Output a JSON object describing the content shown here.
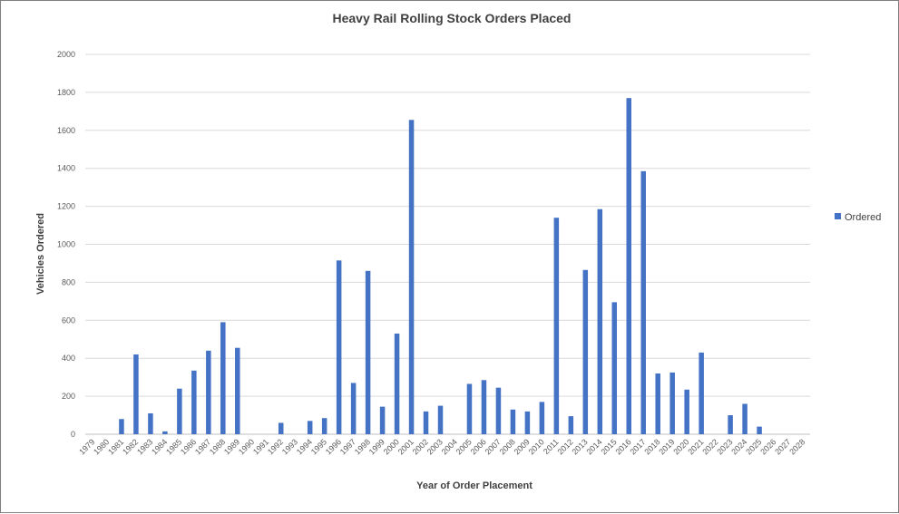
{
  "chart_data": {
    "type": "bar",
    "title": "Heavy Rail Rolling Stock Orders Placed",
    "xlabel": "Year of Order Placement",
    "ylabel": "Vehicles Ordered",
    "ylim": [
      0,
      2000
    ],
    "yticks": [
      0,
      200,
      400,
      600,
      800,
      1000,
      1200,
      1400,
      1600,
      1800,
      2000
    ],
    "grid": true,
    "legend_position": "right",
    "bar_color": "#4472C4",
    "categories": [
      "1979",
      "1980",
      "1981",
      "1982",
      "1983",
      "1984",
      "1985",
      "1986",
      "1987",
      "1988",
      "1989",
      "1990",
      "1991",
      "1992",
      "1993",
      "1994",
      "1995",
      "1996",
      "1997",
      "1998",
      "1999",
      "2000",
      "2001",
      "2002",
      "2003",
      "2004",
      "2005",
      "2006",
      "2007",
      "2008",
      "2009",
      "2010",
      "2011",
      "2012",
      "2013",
      "2014",
      "2015",
      "2016",
      "2017",
      "2018",
      "2019",
      "2020",
      "2021",
      "2022",
      "2023",
      "2024",
      "2025",
      "2026",
      "2027",
      "2028"
    ],
    "series": [
      {
        "name": "Ordered",
        "values": [
          0,
          0,
          80,
          420,
          110,
          15,
          240,
          335,
          440,
          590,
          455,
          0,
          0,
          60,
          0,
          70,
          85,
          915,
          270,
          860,
          145,
          530,
          1655,
          120,
          150,
          0,
          265,
          285,
          245,
          130,
          120,
          170,
          1140,
          95,
          865,
          1185,
          695,
          1770,
          1385,
          320,
          325,
          235,
          430,
          0,
          100,
          160,
          40,
          0,
          0,
          0
        ]
      }
    ]
  }
}
